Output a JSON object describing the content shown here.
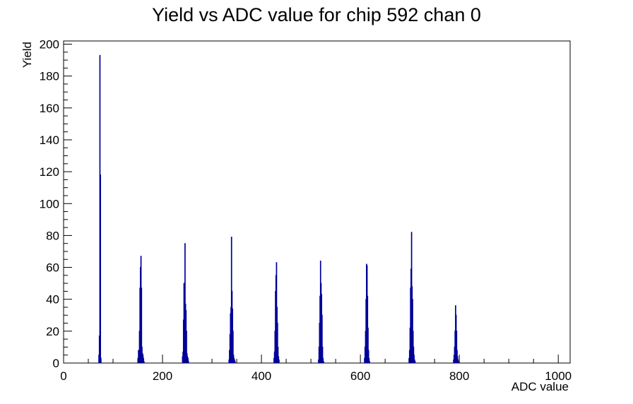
{
  "chart_data": {
    "type": "bar",
    "title": "Yield vs ADC value for chip 592 chan 0",
    "xlabel": "ADC value",
    "ylabel": "Yield",
    "xlim": [
      0,
      1024
    ],
    "ylim": [
      0,
      202
    ],
    "x_ticks": [
      0,
      200,
      400,
      600,
      800,
      1000
    ],
    "y_ticks": [
      0,
      20,
      40,
      60,
      80,
      100,
      120,
      140,
      160,
      180,
      200
    ],
    "grid": false,
    "legend": "none",
    "series_color": "#000099",
    "bin_width": 1,
    "series": [
      {
        "x": [
          71,
          72,
          73,
          74,
          75,
          150,
          151,
          152,
          153,
          154,
          155,
          156,
          157,
          158,
          159,
          160,
          161,
          162,
          240,
          241,
          242,
          243,
          244,
          245,
          246,
          247,
          248,
          249,
          250,
          251,
          252,
          334,
          335,
          336,
          337,
          338,
          339,
          340,
          341,
          342,
          343,
          344,
          345,
          346,
          425,
          426,
          427,
          428,
          429,
          430,
          431,
          432,
          433,
          434,
          435,
          515,
          516,
          517,
          518,
          519,
          520,
          521,
          522,
          523,
          524,
          525,
          608,
          609,
          610,
          611,
          612,
          613,
          614,
          615,
          616,
          617,
          618,
          698,
          699,
          700,
          701,
          702,
          703,
          704,
          705,
          706,
          707,
          708,
          709,
          710,
          788,
          789,
          790,
          791,
          792,
          793,
          794,
          795,
          796,
          797,
          798
        ],
        "values": [
          5,
          17,
          193,
          118,
          3,
          3,
          8,
          4,
          20,
          47,
          60,
          67,
          47,
          10,
          6,
          5,
          3,
          1,
          4,
          7,
          27,
          50,
          33,
          75,
          37,
          33,
          20,
          6,
          4,
          3,
          1,
          2,
          8,
          18,
          31,
          35,
          79,
          45,
          34,
          20,
          5,
          3,
          2,
          1,
          3,
          7,
          20,
          45,
          55,
          63,
          35,
          25,
          10,
          4,
          2,
          2,
          10,
          25,
          42,
          64,
          50,
          43,
          30,
          10,
          3,
          1,
          3,
          10,
          20,
          40,
          62,
          61,
          42,
          22,
          8,
          3,
          1,
          3,
          8,
          22,
          47,
          59,
          82,
          48,
          40,
          20,
          10,
          5,
          2,
          1,
          2,
          5,
          10,
          20,
          36,
          30,
          20,
          8,
          4,
          2,
          1
        ]
      }
    ]
  }
}
